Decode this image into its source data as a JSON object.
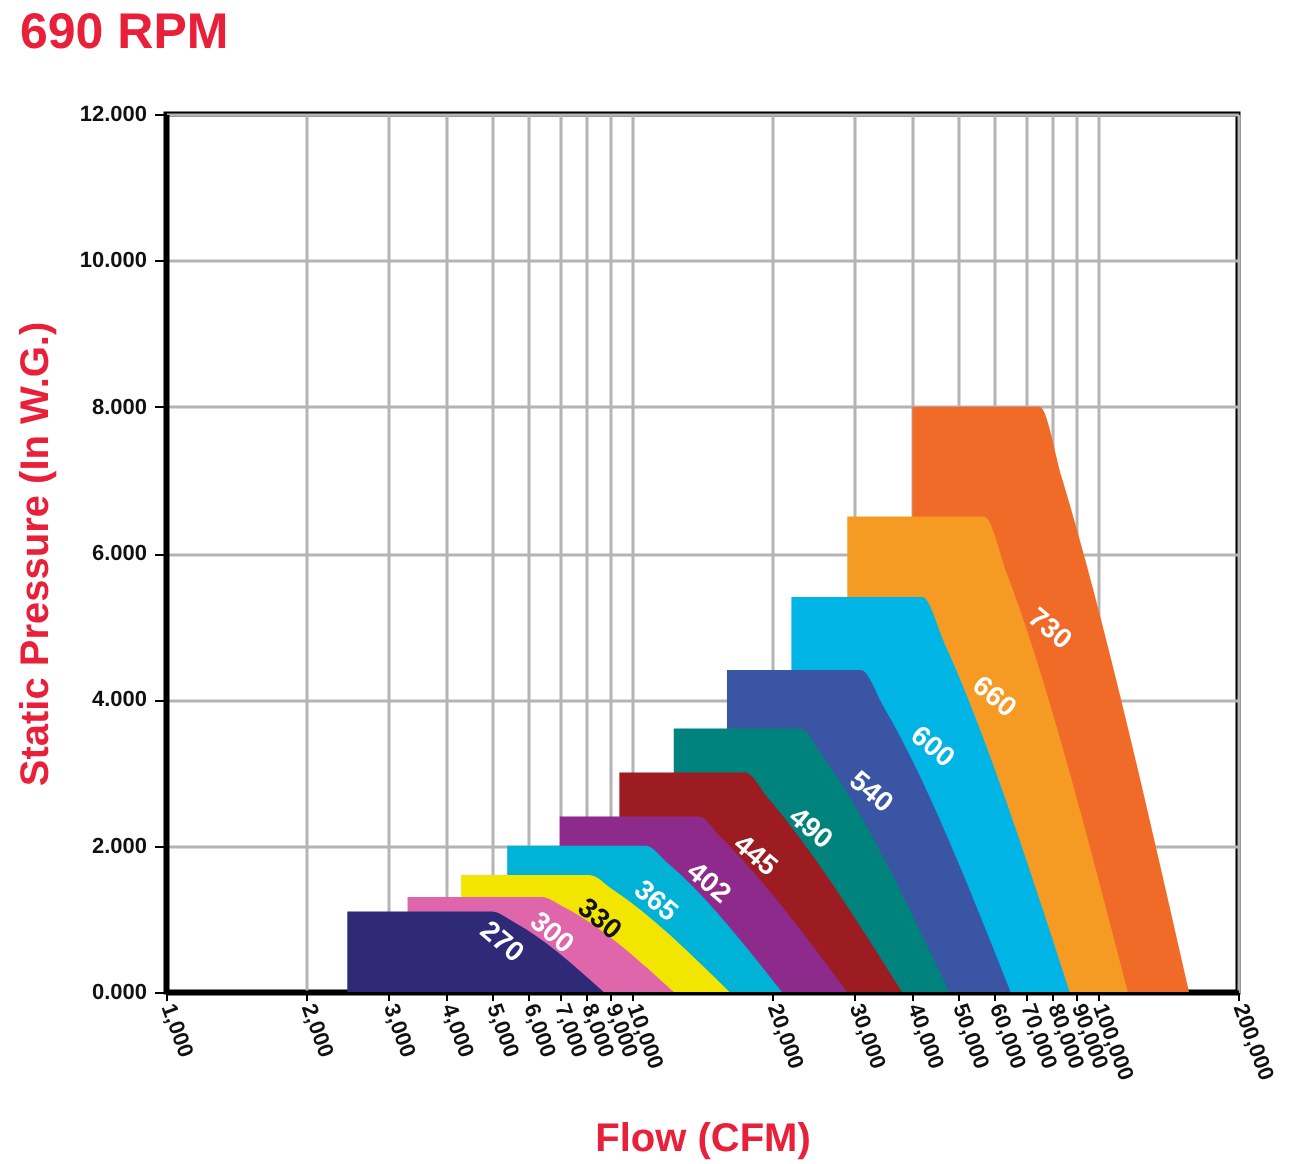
{
  "chart_data": {
    "type": "area",
    "title": "690 RPM",
    "xlabel": "Flow (CFM)",
    "ylabel": "Static Pressure (In W.G.)",
    "log": "x",
    "grid": true,
    "xlim": [
      1000,
      200000
    ],
    "xticks": [
      {
        "value": 1000,
        "label": "1,000"
      },
      {
        "value": 2000,
        "label": "2,000"
      },
      {
        "value": 3000,
        "label": "3,000"
      },
      {
        "value": 4000,
        "label": "4,000"
      },
      {
        "value": 5000,
        "label": "5,000"
      },
      {
        "value": 6000,
        "label": "6,000"
      },
      {
        "value": 7000,
        "label": "7,000"
      },
      {
        "value": 8000,
        "label": "8,000"
      },
      {
        "value": 9000,
        "label": "9,000"
      },
      {
        "value": 10000,
        "label": "10,000"
      },
      {
        "value": 20000,
        "label": "20,000"
      },
      {
        "value": 30000,
        "label": "30,000"
      },
      {
        "value": 40000,
        "label": "40,000"
      },
      {
        "value": 50000,
        "label": "50,000"
      },
      {
        "value": 60000,
        "label": "60,000"
      },
      {
        "value": 70000,
        "label": "70,000"
      },
      {
        "value": 80000,
        "label": "80,000"
      },
      {
        "value": 90000,
        "label": "90,000"
      },
      {
        "value": 100000,
        "label": "100,000"
      },
      {
        "value": 200000,
        "label": "200,000"
      }
    ],
    "ylim": [
      0,
      12
    ],
    "yticks": [
      {
        "value": 0,
        "label": "0.000"
      },
      {
        "value": 2,
        "label": "2.000"
      },
      {
        "value": 4,
        "label": "4.000"
      },
      {
        "value": 6,
        "label": "6.000"
      },
      {
        "value": 8,
        "label": "8.000"
      },
      {
        "value": 10,
        "label": "10.000"
      },
      {
        "value": 12,
        "label": "12.000"
      }
    ],
    "series": [
      {
        "name": "270",
        "color": "#2e2a78",
        "x": [
          2450,
          5000,
          5600,
          8700
        ],
        "values": [
          1.1,
          1.1,
          0.95,
          0
        ]
      },
      {
        "name": "300",
        "color": "#e066ac",
        "x": [
          3300,
          6400,
          7200,
          12300
        ],
        "values": [
          1.3,
          1.3,
          1.15,
          0
        ]
      },
      {
        "name": "330",
        "color": "#f2e600",
        "x": [
          4300,
          8100,
          9100,
          16200
        ],
        "values": [
          1.6,
          1.6,
          1.4,
          0
        ]
      },
      {
        "name": "365",
        "color": "#00b2d6",
        "x": [
          5400,
          10700,
          12000,
          21000
        ],
        "values": [
          2.0,
          2.0,
          1.75,
          0
        ]
      },
      {
        "name": "402",
        "color": "#8e2a8c",
        "x": [
          7000,
          13900,
          15600,
          29000
        ],
        "values": [
          2.4,
          2.4,
          2.1,
          0
        ]
      },
      {
        "name": "445",
        "color": "#9c1c22",
        "x": [
          9400,
          17500,
          19600,
          38000
        ],
        "values": [
          3.0,
          3.0,
          2.65,
          0
        ]
      },
      {
        "name": "490",
        "color": "#00837c",
        "x": [
          12300,
          23000,
          25800,
          48000
        ],
        "values": [
          3.6,
          3.6,
          3.2,
          0
        ]
      },
      {
        "name": "540",
        "color": "#3b55a5",
        "x": [
          16000,
          31000,
          34700,
          65000
        ],
        "values": [
          4.4,
          4.4,
          3.9,
          0
        ]
      },
      {
        "name": "600",
        "color": "#00b4e6",
        "x": [
          22000,
          42000,
          47000,
          87000
        ],
        "values": [
          5.4,
          5.4,
          4.75,
          0
        ]
      },
      {
        "name": "660",
        "color": "#f59a23",
        "x": [
          29000,
          57000,
          64000,
          116000
        ],
        "values": [
          6.5,
          6.5,
          5.7,
          0
        ]
      },
      {
        "name": "730",
        "color": "#f06a28",
        "x": [
          40000,
          75000,
          84000,
          157000
        ],
        "values": [
          8.0,
          8.0,
          7.0,
          0
        ]
      }
    ]
  }
}
